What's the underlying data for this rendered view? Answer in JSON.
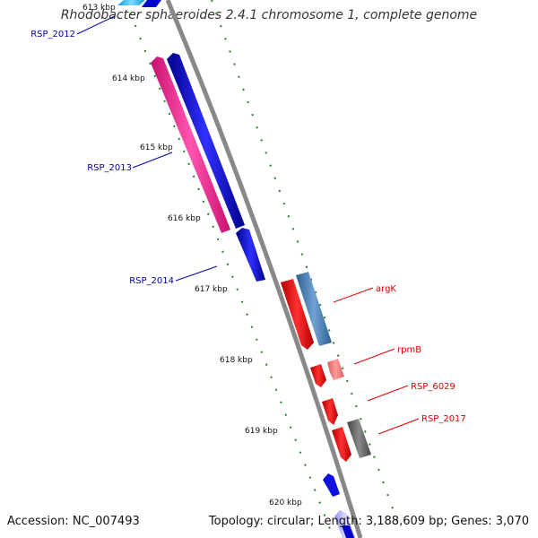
{
  "title": "Rhodobacter sphaeroides 2.4.1 chromosome 1, complete genome",
  "accession": "Accession: NC_007493",
  "summary": "Topology: circular; Length: 3,188,609 bp; Genes: 3,070",
  "colors": {
    "backbone": "#888888",
    "tick_dash": "#2e7d2e",
    "label_blue": "#0000aa",
    "label_red": "#dd0000"
  },
  "ticks": [
    {
      "label": "613 kbp"
    },
    {
      "label": "614 kbp"
    },
    {
      "label": "615 kbp"
    },
    {
      "label": "616 kbp"
    },
    {
      "label": "617 kbp"
    },
    {
      "label": "618 kbp"
    },
    {
      "label": "619 kbp"
    },
    {
      "label": "620 kbp"
    }
  ],
  "gene_labels": [
    {
      "name": "RSP_2012",
      "color": "#0000aa"
    },
    {
      "name": "RSP_2013",
      "color": "#0000aa"
    },
    {
      "name": "RSP_2014",
      "color": "#0000aa"
    },
    {
      "name": "argK",
      "color": "#dd0000"
    },
    {
      "name": "rpmB",
      "color": "#dd0000"
    },
    {
      "name": "RSP_6029",
      "color": "#dd0000"
    },
    {
      "name": "RSP_2017",
      "color": "#dd0000"
    }
  ]
}
